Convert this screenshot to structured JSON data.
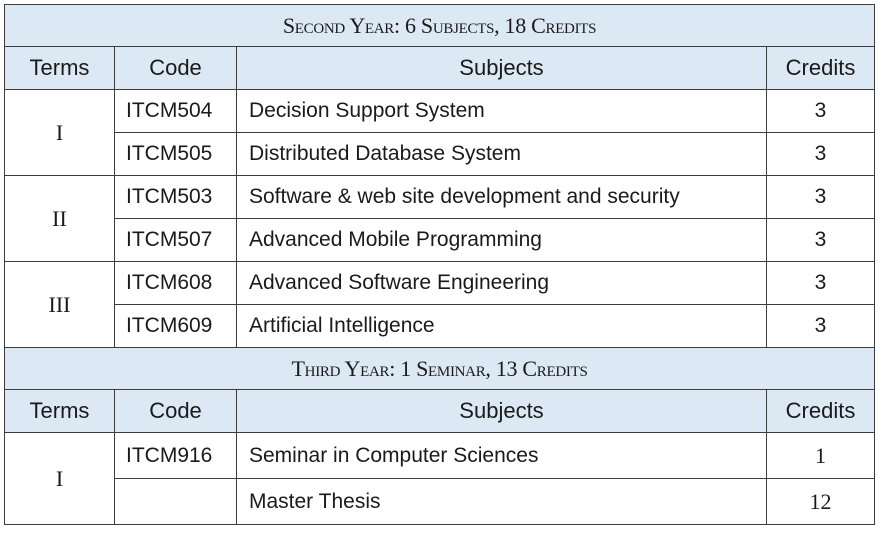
{
  "sections": [
    {
      "title": "Second Year: 6 Subjects, 18 Credits",
      "headers": {
        "terms": "Terms",
        "code": "Code",
        "subjects": "Subjects",
        "credits": "Credits"
      },
      "terms": [
        {
          "label": "I",
          "rows": [
            {
              "code": "ITCM504",
              "subject": "Decision Support System",
              "credits": "3"
            },
            {
              "code": "ITCM505",
              "subject": "Distributed Database System",
              "credits": "3"
            }
          ]
        },
        {
          "label": "II",
          "rows": [
            {
              "code": "ITCM503",
              "subject": "Software & web site development and security",
              "credits": "3"
            },
            {
              "code": "ITCM507",
              "subject": "Advanced Mobile Programming",
              "credits": "3"
            }
          ]
        },
        {
          "label": "III",
          "rows": [
            {
              "code": "ITCM608",
              "subject": "Advanced Software Engineering",
              "credits": "3"
            },
            {
              "code": "ITCM609",
              "subject": "Artificial Intelligence",
              "credits": "3"
            }
          ]
        }
      ]
    },
    {
      "title": "Third Year: 1 Seminar, 13 Credits",
      "headers": {
        "terms": "Terms",
        "code": "Code",
        "subjects": "Subjects",
        "credits": "Credits"
      },
      "terms": [
        {
          "label": "I",
          "rows": [
            {
              "code": "ITCM916",
              "subject": "Seminar in Computer Sciences",
              "credits": "1"
            },
            {
              "code": "",
              "subject": "Master Thesis",
              "credits": "12"
            }
          ]
        }
      ]
    }
  ]
}
